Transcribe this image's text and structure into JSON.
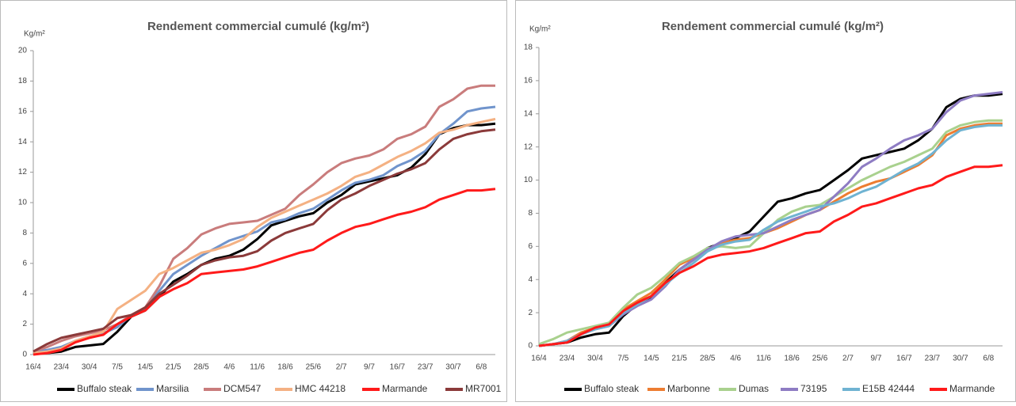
{
  "chart_data": [
    {
      "type": "line",
      "title": "Rendement commercial cumulé (kg/m²)",
      "y_label": "Kg/m²",
      "categories": [
        "16/4",
        null,
        "23/4",
        null,
        "30/4",
        null,
        "7/5",
        null,
        "14/5",
        null,
        "21/5",
        null,
        "28/5",
        null,
        "4/6",
        null,
        "11/6",
        null,
        "18/6",
        null,
        "25/6",
        null,
        "2/7",
        null,
        "9/7",
        null,
        "16/7",
        null,
        "23/7",
        null,
        "30/7",
        null,
        "6/8",
        null
      ],
      "ylim": [
        0,
        20
      ],
      "yticks": [
        0,
        2,
        4,
        6,
        8,
        10,
        12,
        14,
        16,
        18,
        20
      ],
      "series": [
        {
          "name": "Buffalo steak",
          "color": "#000000",
          "values": [
            0.1,
            0.1,
            0.2,
            0.5,
            0.6,
            0.7,
            1.5,
            2.5,
            2.9,
            3.8,
            4.8,
            5.3,
            5.9,
            6.3,
            6.5,
            6.9,
            7.6,
            8.5,
            8.8,
            9.1,
            9.3,
            10.0,
            10.5,
            11.2,
            11.4,
            11.6,
            11.8,
            12.3,
            13.2,
            14.5,
            14.9,
            15.1,
            15.1,
            15.2
          ]
        },
        {
          "name": "Marsilia",
          "color": "#7094cc",
          "values": [
            0.2,
            0.3,
            0.5,
            0.9,
            1.2,
            1.4,
            1.8,
            2.6,
            3.0,
            4.2,
            5.3,
            5.9,
            6.5,
            7.0,
            7.5,
            7.8,
            8.1,
            8.7,
            8.9,
            9.3,
            9.6,
            10.2,
            10.8,
            11.3,
            11.5,
            11.8,
            12.4,
            12.8,
            13.4,
            14.5,
            15.2,
            16.0,
            16.2,
            16.3
          ]
        },
        {
          "name": "DCM547",
          "color": "#c97c7c",
          "values": [
            0.2,
            0.5,
            0.9,
            1.2,
            1.4,
            1.6,
            2.0,
            2.6,
            3.1,
            4.5,
            6.3,
            7.0,
            7.9,
            8.3,
            8.6,
            8.7,
            8.8,
            9.2,
            9.6,
            10.5,
            11.2,
            12.0,
            12.6,
            12.9,
            13.1,
            13.5,
            14.2,
            14.5,
            15.0,
            16.3,
            16.8,
            17.5,
            17.7,
            17.7
          ]
        },
        {
          "name": "HMC 44218",
          "color": "#f4b183",
          "values": [
            0.1,
            0.2,
            0.4,
            0.9,
            1.2,
            1.5,
            3.0,
            3.6,
            4.2,
            5.3,
            5.7,
            6.2,
            6.7,
            6.9,
            7.2,
            7.6,
            8.4,
            9.0,
            9.4,
            9.8,
            10.2,
            10.6,
            11.1,
            11.7,
            12.0,
            12.5,
            13.0,
            13.4,
            13.9,
            14.6,
            14.8,
            15.1,
            15.3,
            15.5
          ]
        },
        {
          "name": "Marmande",
          "color": "#ff1a1a",
          "values": [
            0,
            0.1,
            0.3,
            0.8,
            1.1,
            1.3,
            2.0,
            2.5,
            2.9,
            3.8,
            4.3,
            4.7,
            5.3,
            5.4,
            5.5,
            5.6,
            5.8,
            6.1,
            6.4,
            6.7,
            6.9,
            7.5,
            8.0,
            8.4,
            8.6,
            8.9,
            9.2,
            9.4,
            9.7,
            10.2,
            10.5,
            10.8,
            10.8,
            10.9
          ]
        },
        {
          "name": "MR7001",
          "color": "#8b3a3a",
          "values": [
            0.2,
            0.7,
            1.1,
            1.3,
            1.5,
            1.7,
            2.4,
            2.6,
            3.1,
            4.0,
            4.6,
            5.2,
            5.9,
            6.2,
            6.4,
            6.5,
            6.8,
            7.5,
            8.0,
            8.3,
            8.6,
            9.5,
            10.2,
            10.6,
            11.1,
            11.5,
            11.9,
            12.2,
            12.6,
            13.5,
            14.2,
            14.5,
            14.7,
            14.8
          ]
        }
      ]
    },
    {
      "type": "line",
      "title": "Rendement commercial cumulé (kg/m²)",
      "y_label": "Kg/m²",
      "categories": [
        "16/4",
        null,
        "23/4",
        null,
        "30/4",
        null,
        "7/5",
        null,
        "14/5",
        null,
        "21/5",
        null,
        "28/5",
        null,
        "4/6",
        null,
        "11/6",
        null,
        "18/6",
        null,
        "25/6",
        null,
        "2/7",
        null,
        "9/7",
        null,
        "16/7",
        null,
        "23/7",
        null,
        "30/7",
        null,
        "6/8",
        null
      ],
      "ylim": [
        0,
        18
      ],
      "yticks": [
        0,
        2,
        4,
        6,
        8,
        10,
        12,
        14,
        16,
        18
      ],
      "series": [
        {
          "name": "Buffalo steak",
          "color": "#000000",
          "values": [
            0,
            0.1,
            0.2,
            0.5,
            0.7,
            0.8,
            1.8,
            2.5,
            2.9,
            3.8,
            4.6,
            5.2,
            5.9,
            6.2,
            6.5,
            6.9,
            7.8,
            8.7,
            8.9,
            9.2,
            9.4,
            10.0,
            10.6,
            11.3,
            11.5,
            11.7,
            11.9,
            12.4,
            13.1,
            14.4,
            14.9,
            15.1,
            15.1,
            15.2
          ]
        },
        {
          "name": "Marbonne",
          "color": "#ed7d31",
          "values": [
            0,
            0.1,
            0.3,
            0.8,
            1.1,
            1.3,
            2.2,
            2.7,
            3.2,
            4.0,
            4.9,
            5.3,
            5.8,
            6.2,
            6.4,
            6.5,
            6.8,
            7.1,
            7.5,
            7.9,
            8.2,
            8.7,
            9.2,
            9.6,
            9.9,
            10.1,
            10.5,
            10.9,
            11.5,
            12.7,
            13.1,
            13.3,
            13.4,
            13.4
          ]
        },
        {
          "name": "Dumas",
          "color": "#a9d18e",
          "values": [
            0.1,
            0.4,
            0.8,
            1.0,
            1.2,
            1.4,
            2.3,
            3.1,
            3.5,
            4.2,
            5.0,
            5.4,
            5.9,
            6.0,
            5.9,
            6.0,
            6.8,
            7.6,
            8.1,
            8.4,
            8.5,
            9.0,
            9.5,
            10.0,
            10.4,
            10.8,
            11.1,
            11.5,
            11.9,
            12.9,
            13.3,
            13.5,
            13.6,
            13.6
          ]
        },
        {
          "name": "73195",
          "color": "#8e7cc3",
          "values": [
            0,
            0.1,
            0.3,
            0.7,
            1.0,
            1.2,
            1.9,
            2.4,
            2.8,
            3.6,
            4.6,
            5.2,
            5.8,
            6.3,
            6.6,
            6.7,
            6.8,
            7.2,
            7.6,
            7.9,
            8.2,
            9.0,
            9.8,
            10.8,
            11.3,
            11.9,
            12.4,
            12.7,
            13.1,
            14.1,
            14.8,
            15.1,
            15.2,
            15.3
          ]
        },
        {
          "name": "E15B 42444",
          "color": "#6fb3d2",
          "values": [
            0,
            0.1,
            0.3,
            0.7,
            1.0,
            1.2,
            2.0,
            2.5,
            3.0,
            3.7,
            4.4,
            5.0,
            5.7,
            6.1,
            6.3,
            6.4,
            7.0,
            7.5,
            7.8,
            8.1,
            8.4,
            8.6,
            8.9,
            9.3,
            9.6,
            10.1,
            10.6,
            11.0,
            11.6,
            12.4,
            13.0,
            13.2,
            13.3,
            13.3
          ]
        },
        {
          "name": "Marmande",
          "color": "#ff1a1a",
          "values": [
            0,
            0.1,
            0.2,
            0.7,
            1.1,
            1.3,
            2.1,
            2.6,
            3.0,
            3.8,
            4.4,
            4.8,
            5.3,
            5.5,
            5.6,
            5.7,
            5.9,
            6.2,
            6.5,
            6.8,
            6.9,
            7.5,
            7.9,
            8.4,
            8.6,
            8.9,
            9.2,
            9.5,
            9.7,
            10.2,
            10.5,
            10.8,
            10.8,
            10.9
          ]
        }
      ]
    }
  ]
}
